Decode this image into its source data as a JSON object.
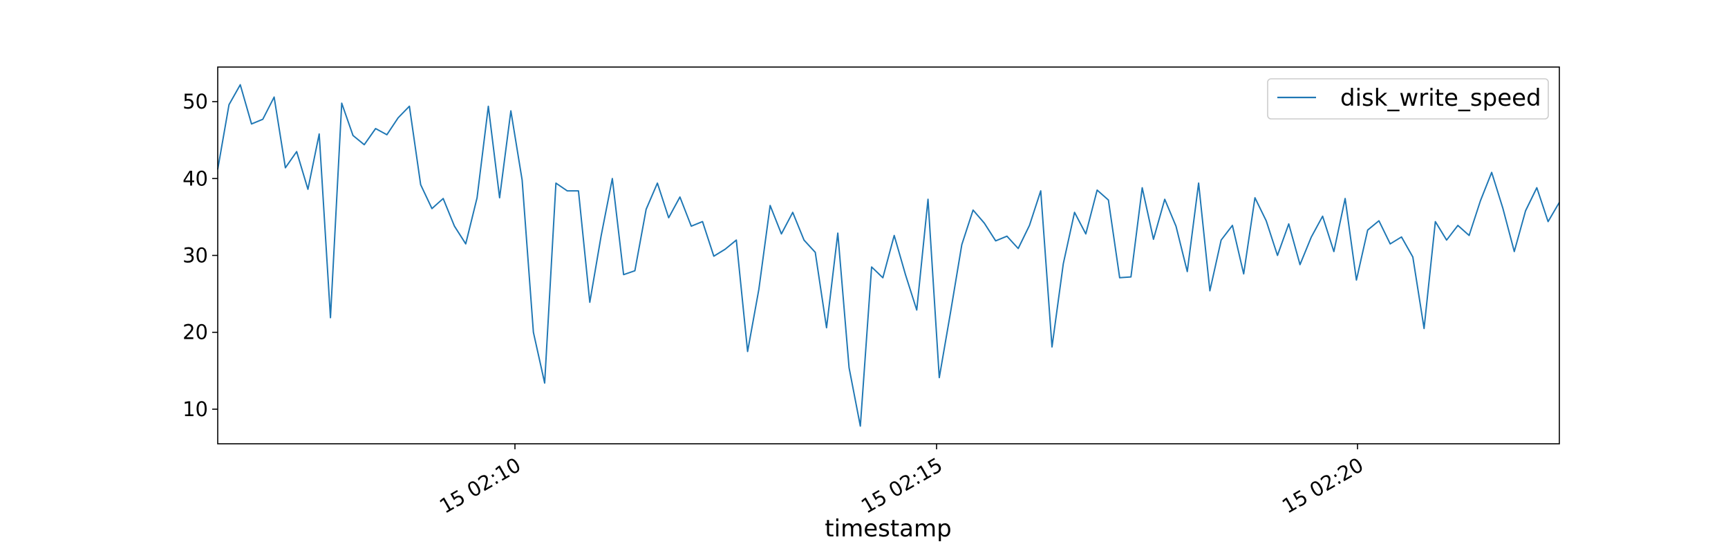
{
  "chart_data": {
    "type": "line",
    "title": "",
    "xlabel": "timestamp",
    "ylabel": "",
    "x_tick_labels": [
      "15 02:10",
      "15 02:15",
      "15 02:20"
    ],
    "y_tick_labels": [
      "10",
      "20",
      "30",
      "40",
      "50"
    ],
    "ylim": [
      5.5,
      54.5
    ],
    "grid": false,
    "legend_position": "top-right",
    "series": [
      {
        "name": "disk_write_speed",
        "color": "#1f77b4",
        "values": [
          41.2,
          49.6,
          52.2,
          47.1,
          47.7,
          50.6,
          41.4,
          43.5,
          38.6,
          45.8,
          21.9,
          49.8,
          45.6,
          44.4,
          46.5,
          45.7,
          47.9,
          49.4,
          39.2,
          36.1,
          37.4,
          33.8,
          31.5,
          37.5,
          49.4,
          37.5,
          48.8,
          39.8,
          20.0,
          13.4,
          39.4,
          38.4,
          38.4,
          23.9,
          32.5,
          40.0,
          27.5,
          28.0,
          36.0,
          39.4,
          34.9,
          37.6,
          33.8,
          34.4,
          29.9,
          30.8,
          32.0,
          17.5,
          25.6,
          36.5,
          32.8,
          35.6,
          32.0,
          30.4,
          20.6,
          32.9,
          15.4,
          7.8,
          28.5,
          27.1,
          32.6,
          27.5,
          22.9,
          37.3,
          14.1,
          22.6,
          31.4,
          35.9,
          34.2,
          31.9,
          32.5,
          30.9,
          33.9,
          38.4,
          18.1,
          28.9,
          35.6,
          32.8,
          38.5,
          37.2,
          27.1,
          27.2,
          38.8,
          32.1,
          37.3,
          33.8,
          27.9,
          39.4,
          25.4,
          32.0,
          33.9,
          27.6,
          37.5,
          34.5,
          30.0,
          34.1,
          28.8,
          32.4,
          35.1,
          30.5,
          37.4,
          26.8,
          33.3,
          34.5,
          31.5,
          32.4,
          29.8,
          20.5,
          34.4,
          32.0,
          33.9,
          32.6,
          37.1,
          40.8,
          36.1,
          30.5,
          35.8,
          38.8,
          34.4,
          36.9
        ]
      }
    ]
  }
}
